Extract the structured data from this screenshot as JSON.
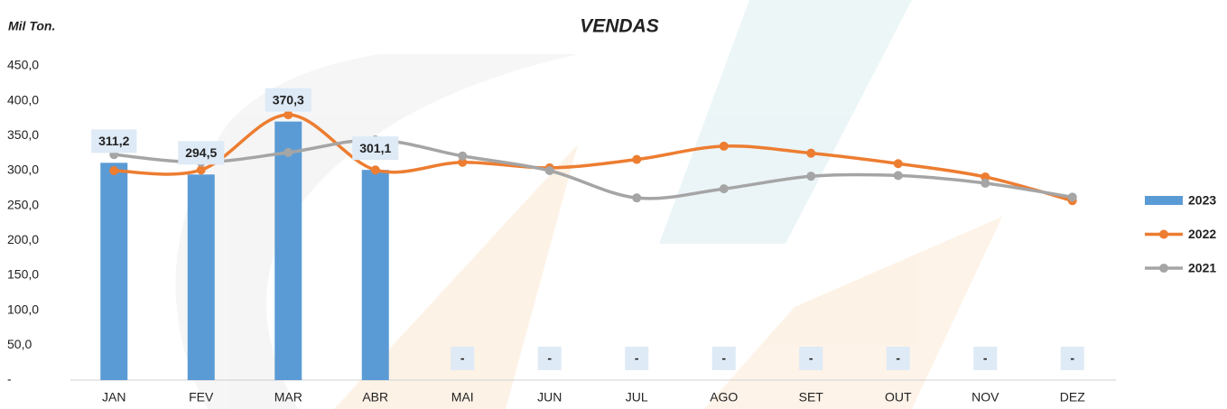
{
  "chart_data": {
    "type": "combo",
    "title": "VENDAS",
    "y_label": "Mil Ton.",
    "categories": [
      "JAN",
      "FEV",
      "MAR",
      "ABR",
      "MAI",
      "JUN",
      "JUL",
      "AGO",
      "SET",
      "OUT",
      "NOV",
      "DEZ"
    ],
    "ylim": [
      0,
      450
    ],
    "yticks": [
      {
        "value": 0,
        "label": "-"
      },
      {
        "value": 50,
        "label": "50,0"
      },
      {
        "value": 100,
        "label": "100,0"
      },
      {
        "value": 150,
        "label": "150,0"
      },
      {
        "value": 200,
        "label": "200,0"
      },
      {
        "value": 250,
        "label": "250,0"
      },
      {
        "value": 300,
        "label": "300,0"
      },
      {
        "value": 350,
        "label": "350,0"
      },
      {
        "value": 400,
        "label": "400,0"
      },
      {
        "value": 450,
        "label": "450,0"
      }
    ],
    "grid": false,
    "legend": "right",
    "series": [
      {
        "name": "2023",
        "type": "bar",
        "color": "#5b9bd5",
        "values": [
          311.2,
          294.5,
          370.3,
          301.1,
          0,
          0,
          0,
          0,
          0,
          0,
          0,
          0
        ],
        "value_labels": [
          "311,2",
          "294,5",
          "370,3",
          "301,1",
          "-",
          "-",
          "-",
          "-",
          "-",
          "-",
          "-",
          "-"
        ]
      },
      {
        "name": "2022",
        "type": "line",
        "color": "#ed7d31",
        "values": [
          300,
          301,
          380,
          301,
          312,
          304,
          316,
          335,
          325,
          310,
          291,
          257
        ]
      },
      {
        "name": "2021",
        "type": "line",
        "color": "#a5a5a5",
        "values": [
          323,
          312,
          326,
          344,
          321,
          300,
          261,
          274,
          292,
          293,
          282,
          262
        ]
      }
    ]
  }
}
